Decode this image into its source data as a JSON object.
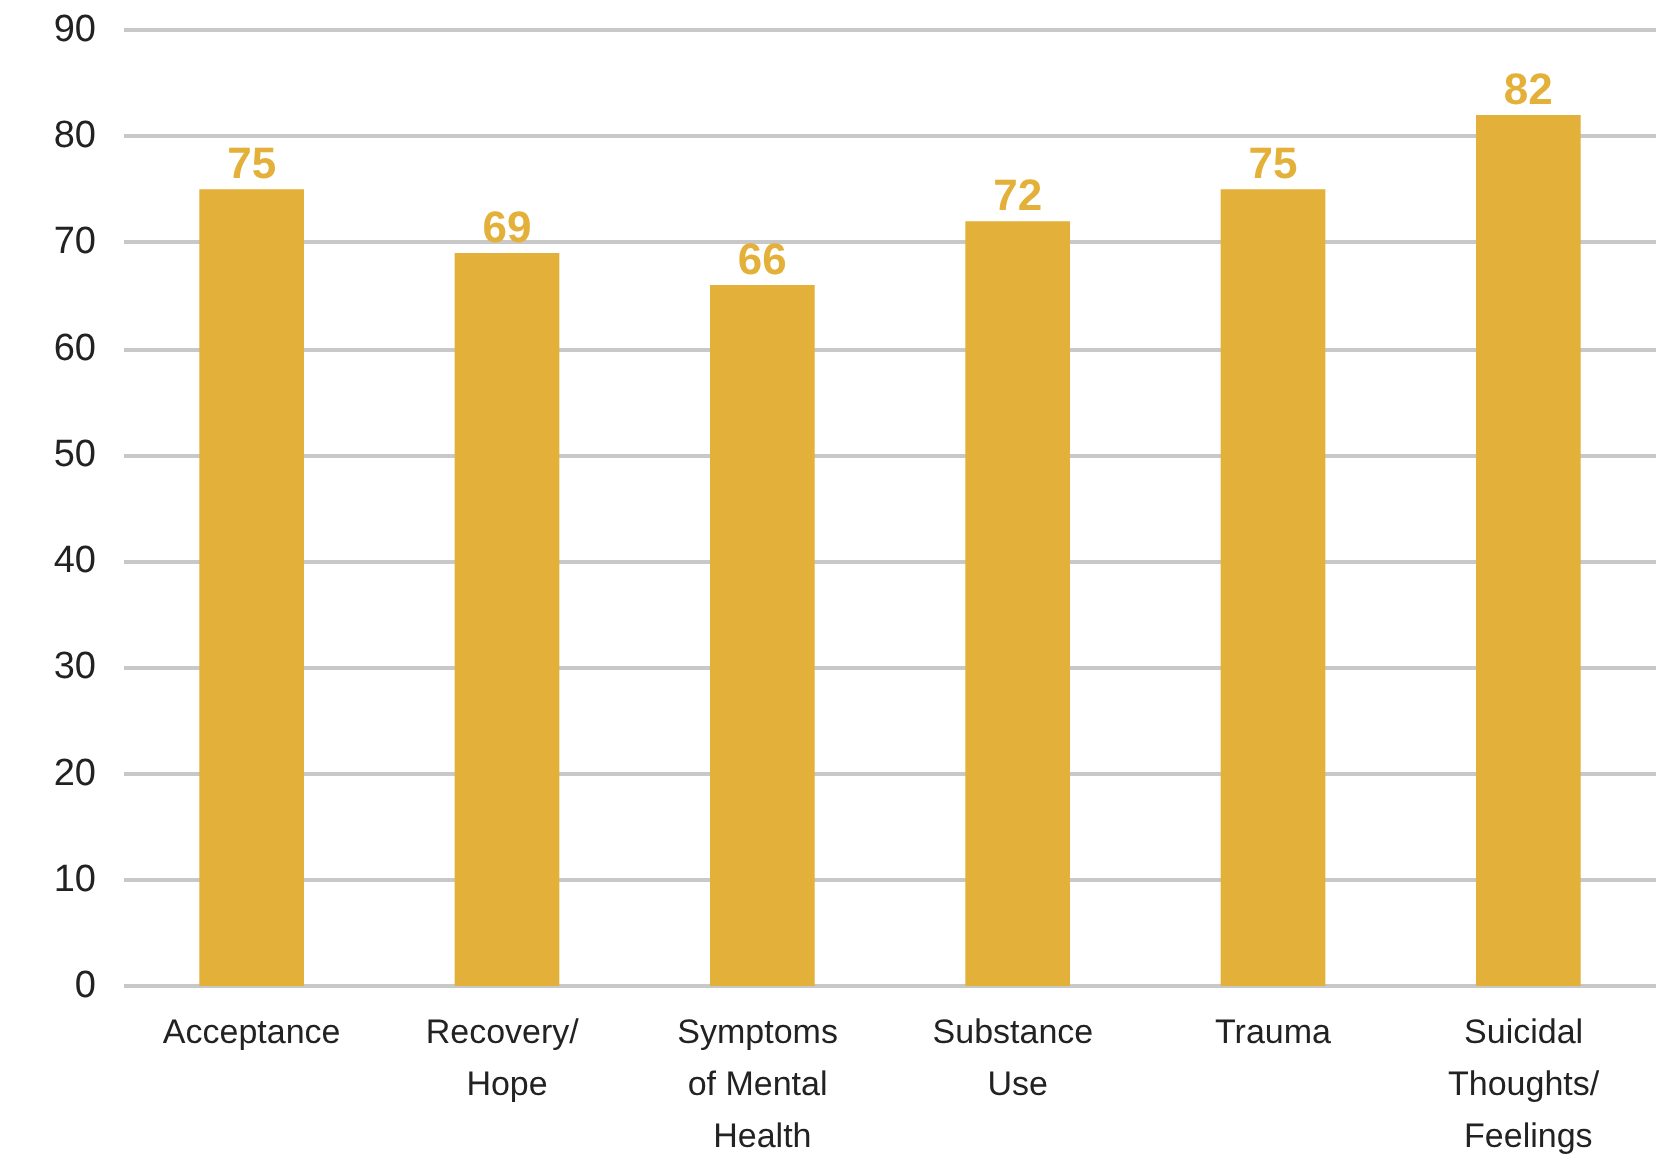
{
  "chart_data": {
    "type": "bar",
    "categories": [
      "Acceptance",
      "Recovery/ Hope",
      "Symptoms of Mental Health",
      "Substance Use",
      "Trauma",
      "Suicidal Thoughts/ Feelings"
    ],
    "values": [
      75,
      69,
      66,
      72,
      75,
      82
    ],
    "color": "#e3b13a",
    "ylim": [
      0,
      90
    ],
    "yticks": [
      0,
      10,
      20,
      30,
      40,
      50,
      60,
      70,
      80,
      90
    ],
    "grid": "y",
    "data_labels": true
  }
}
